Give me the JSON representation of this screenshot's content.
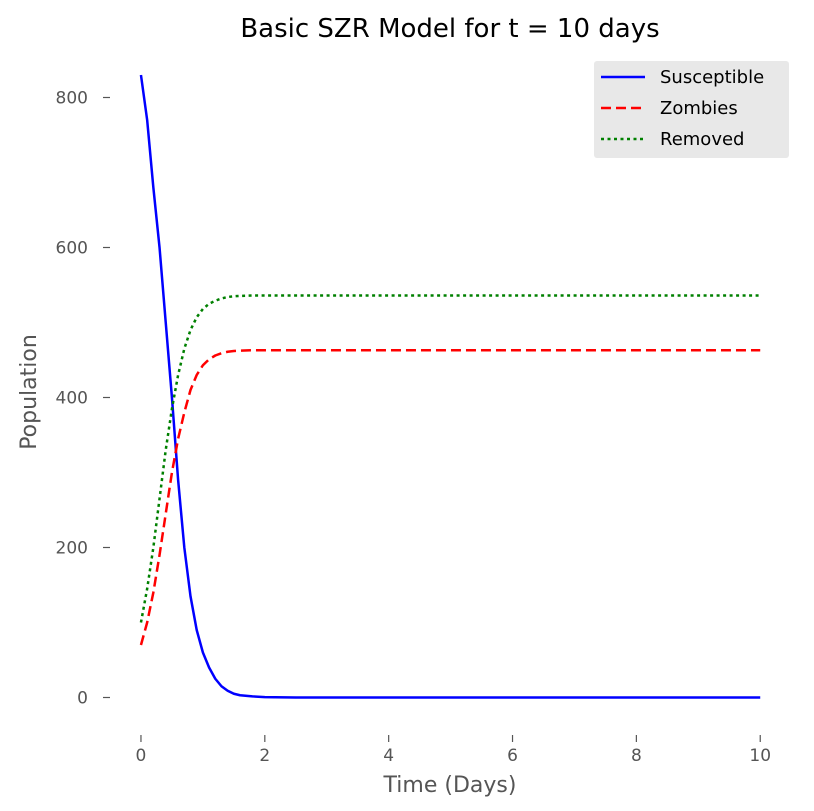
{
  "chart_data": {
    "type": "line",
    "title": "Basic SZR Model for t = 10 days",
    "xlabel": "Time (Days)",
    "ylabel": "Population",
    "xlim": [
      -0.5,
      10.4
    ],
    "ylim": [
      -50,
      850
    ],
    "xticks": [
      0,
      2,
      4,
      6,
      8,
      10
    ],
    "yticks": [
      0,
      200,
      400,
      600,
      800
    ],
    "grid": false,
    "legend": "top-right",
    "series": [
      {
        "name": "Susceptible",
        "color": "#0000ff",
        "style": "solid",
        "x": [
          0,
          0.1,
          0.2,
          0.3,
          0.4,
          0.5,
          0.6,
          0.7,
          0.8,
          0.9,
          1.0,
          1.1,
          1.2,
          1.3,
          1.4,
          1.5,
          1.6,
          1.8,
          2.0,
          2.5,
          3,
          4,
          6,
          8,
          10
        ],
        "y": [
          830,
          770,
          680,
          600,
          500,
          400,
          290,
          200,
          135,
          90,
          60,
          40,
          25,
          15,
          9,
          5,
          3,
          1.5,
          0.5,
          0,
          0,
          0,
          0,
          0,
          0
        ]
      },
      {
        "name": "Zombies",
        "color": "#ff0000",
        "style": "dashed",
        "x": [
          0,
          0.1,
          0.2,
          0.3,
          0.4,
          0.5,
          0.6,
          0.7,
          0.8,
          0.9,
          1.0,
          1.1,
          1.2,
          1.3,
          1.4,
          1.5,
          1.6,
          1.8,
          2.0,
          2.5,
          3,
          4,
          6,
          8,
          10
        ],
        "y": [
          70,
          100,
          140,
          190,
          245,
          300,
          345,
          380,
          410,
          430,
          443,
          451,
          456,
          459,
          461,
          462,
          462.5,
          463,
          463,
          463,
          463,
          463,
          463,
          463,
          463
        ]
      },
      {
        "name": "Removed",
        "color": "#008000",
        "style": "dotted",
        "x": [
          0,
          0.1,
          0.2,
          0.3,
          0.4,
          0.5,
          0.6,
          0.7,
          0.8,
          0.9,
          1.0,
          1.1,
          1.2,
          1.3,
          1.4,
          1.5,
          1.6,
          1.8,
          2.0,
          2.5,
          3,
          4,
          6,
          8,
          10
        ],
        "y": [
          100,
          145,
          200,
          265,
          330,
          385,
          430,
          465,
          490,
          507,
          518,
          525,
          529,
          532,
          534,
          535,
          535.5,
          536,
          536,
          536,
          536,
          536,
          536,
          536,
          536
        ]
      }
    ]
  }
}
